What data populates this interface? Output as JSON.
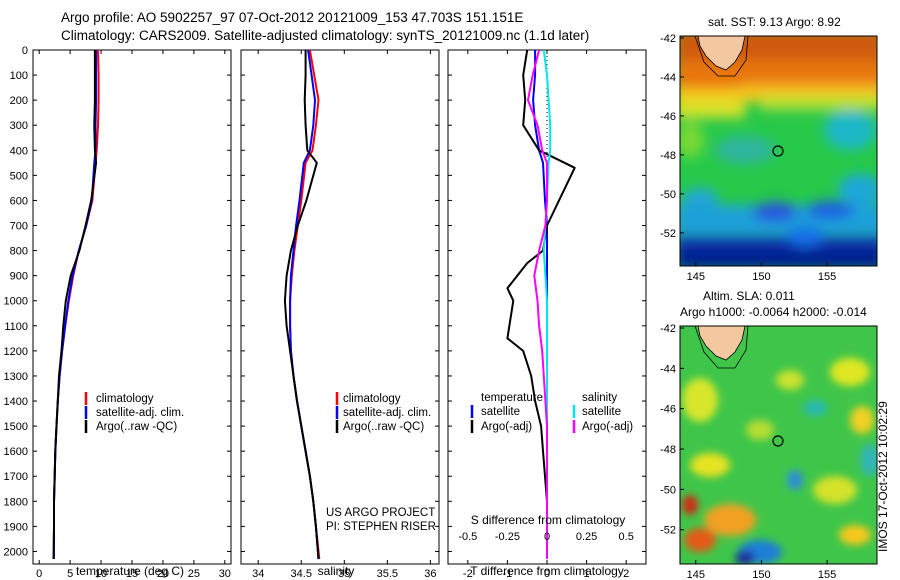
{
  "title": {
    "line1": "Argo profile: AO 5902257_97 07-Oct-2012 20121009_153 47.703S 151.151E",
    "line2": "Climatology: CARS2009. Satellite-adjusted climatology: synTS_20121009.nc (1.1d later)"
  },
  "colors": {
    "climatology": "#ff0000",
    "satellite": "#0000ff",
    "argo": "#000000",
    "salinity_satellite": "#00e5ee",
    "salinity_argo": "#ff00ff"
  },
  "chart_data": [
    {
      "type": "line",
      "panel": "temperature",
      "xlabel": "temperature (deg C)",
      "xlim": [
        -1,
        31
      ],
      "xticks": [
        0,
        5,
        10,
        15,
        20,
        25,
        30
      ],
      "ylim": [
        2050,
        0
      ],
      "yticks": [
        0,
        100,
        200,
        300,
        400,
        500,
        600,
        700,
        800,
        900,
        1000,
        1100,
        1200,
        1300,
        1400,
        1500,
        1600,
        1700,
        1800,
        1900,
        2000
      ],
      "legend": [
        "climatology",
        "satellite-adj. clim.",
        "Argo(..raw -QC)"
      ],
      "series": [
        {
          "name": "climatology",
          "color": "red",
          "x": [
            9.5,
            9.6,
            9.6,
            9.5,
            9.3,
            9.1,
            8.6,
            7.6,
            6.4,
            5.5,
            4.8,
            4.2,
            3.7,
            3.3,
            3.0,
            2.8,
            2.6,
            2.5,
            2.4,
            2.4,
            2.35
          ],
          "y": [
            0,
            100,
            200,
            300,
            400,
            450,
            600,
            700,
            800,
            900,
            1000,
            1100,
            1200,
            1300,
            1400,
            1500,
            1600,
            1700,
            1800,
            1900,
            2030
          ]
        },
        {
          "name": "satellite-adj. clim.",
          "color": "blue",
          "x": [
            9.2,
            9.2,
            9.2,
            9.1,
            9.1,
            8.9,
            8.5,
            7.6,
            6.4,
            5.4,
            4.7,
            4.2,
            3.7,
            3.3,
            3.0,
            2.8,
            2.6,
            2.5,
            2.4,
            2.4,
            2.35
          ],
          "y": [
            0,
            100,
            200,
            300,
            400,
            450,
            600,
            700,
            800,
            900,
            1000,
            1100,
            1200,
            1300,
            1400,
            1500,
            1600,
            1700,
            1800,
            1900,
            2030
          ]
        },
        {
          "name": "Argo(..raw -QC)",
          "color": "black",
          "x": [
            9.0,
            9.0,
            9.0,
            8.9,
            9.0,
            9.2,
            8.4,
            7.5,
            6.5,
            5.1,
            4.3,
            3.9,
            3.6,
            3.2,
            3.0,
            2.8,
            2.6,
            2.5,
            2.4,
            2.4,
            2.35
          ],
          "y": [
            0,
            100,
            200,
            300,
            400,
            450,
            600,
            700,
            800,
            900,
            1000,
            1100,
            1200,
            1300,
            1400,
            1500,
            1600,
            1700,
            1800,
            1900,
            2030
          ]
        }
      ]
    },
    {
      "type": "line",
      "panel": "salinity",
      "xlabel": "salinity",
      "xlim": [
        33.8,
        36.1
      ],
      "xticks": [
        34,
        34.5,
        35,
        35.5,
        36
      ],
      "xticklabels": [
        "34",
        "34.5",
        "35",
        "35.5",
        "36"
      ],
      "ylim": [
        2050,
        0
      ],
      "legend": [
        "climatology",
        "satellite-adj. clim.",
        "Argo(..raw -QC)"
      ],
      "annotation": [
        "US ARGO PROJECT",
        "PI: STEPHEN RISER"
      ],
      "series": [
        {
          "name": "climatology",
          "color": "red",
          "x": [
            34.6,
            34.65,
            34.7,
            34.67,
            34.63,
            34.55,
            34.5,
            34.46,
            34.42,
            34.39,
            34.37,
            34.37,
            34.38,
            34.41,
            34.45,
            34.5,
            34.55,
            34.6,
            34.64,
            34.67,
            34.71
          ],
          "y": [
            0,
            100,
            200,
            300,
            400,
            450,
            600,
            700,
            800,
            900,
            1000,
            1100,
            1200,
            1300,
            1400,
            1500,
            1600,
            1700,
            1800,
            1900,
            2030
          ]
        },
        {
          "name": "satellite-adj. clim.",
          "color": "blue",
          "x": [
            34.58,
            34.62,
            34.66,
            34.64,
            34.6,
            34.53,
            34.48,
            34.44,
            34.41,
            34.38,
            34.37,
            34.37,
            34.38,
            34.41,
            34.45,
            34.5,
            34.55,
            34.6,
            34.64,
            34.67,
            34.7
          ],
          "y": [
            0,
            100,
            200,
            300,
            400,
            450,
            600,
            700,
            800,
            900,
            1000,
            1100,
            1200,
            1300,
            1400,
            1500,
            1600,
            1700,
            1800,
            1900,
            2030
          ]
        },
        {
          "name": "Argo(..raw -QC)",
          "color": "black",
          "x": [
            34.55,
            34.55,
            34.54,
            34.55,
            34.57,
            34.68,
            34.56,
            34.46,
            34.38,
            34.33,
            34.31,
            34.33,
            34.37,
            34.41,
            34.45,
            34.5,
            34.55,
            34.6,
            34.64,
            34.67,
            34.7
          ],
          "y": [
            0,
            100,
            200,
            300,
            400,
            450,
            600,
            700,
            800,
            900,
            1000,
            1100,
            1200,
            1300,
            1400,
            1500,
            1600,
            1700,
            1800,
            1900,
            2030
          ]
        }
      ]
    },
    {
      "type": "line",
      "panel": "differences",
      "xlabel": "T difference from climatology",
      "xlabel2": "S difference from climatology",
      "xlim": [
        -2.5,
        2.5
      ],
      "xticks": [
        -2,
        -1,
        0,
        1,
        2
      ],
      "xticks2": [
        -0.5,
        -0.25,
        0,
        0.25,
        0.5
      ],
      "xticklabels2": [
        "-0.5",
        "-0.25",
        "0",
        "0.25",
        "0.5"
      ],
      "ylim": [
        2050,
        0
      ],
      "legend_temperature": {
        "title": "temperature",
        "items": [
          "satellite",
          "Argo(-adj)"
        ]
      },
      "legend_salinity": {
        "title": "salinity",
        "items": [
          "satellite",
          "Argo(-adj)"
        ]
      },
      "series": [
        {
          "name": "temperature satellite",
          "color": "blue",
          "x": [
            -0.3,
            -0.3,
            -0.35,
            -0.3,
            -0.2,
            -0.1,
            -0.05,
            0.0,
            0.0,
            0.0,
            0.0,
            0.0,
            0.0,
            0.0,
            0.0,
            0.0,
            0.0,
            0.0,
            0.0,
            0.0,
            0.0
          ],
          "y": [
            0,
            100,
            200,
            300,
            400,
            450,
            600,
            700,
            800,
            900,
            1000,
            1100,
            1200,
            1300,
            1400,
            1500,
            1600,
            1700,
            1800,
            1900,
            2030
          ]
        },
        {
          "name": "temperature Argo(-adj)",
          "color": "black",
          "x": [
            -0.5,
            -0.6,
            -0.55,
            -0.6,
            -0.2,
            0.7,
            0.0,
            -0.1,
            -0.5,
            -1.0,
            -0.85,
            -1.0,
            -0.6,
            -0.4,
            -0.3,
            -0.15,
            -0.1,
            -0.05,
            0.0,
            0.0,
            0.0
          ],
          "y": [
            0,
            100,
            200,
            300,
            400,
            470,
            700,
            800,
            850,
            950,
            1000,
            1150,
            1200,
            1300,
            1400,
            1500,
            1600,
            1700,
            1800,
            1900,
            2030
          ]
        },
        {
          "name": "salinity satellite",
          "color": "cyan",
          "x": [
            -0.02,
            0.0,
            0.01,
            0.02,
            0.02,
            0.01,
            0.0,
            -0.01,
            -0.02,
            -0.01,
            0.0,
            0.0,
            0.0,
            0.0,
            0.0,
            0.0,
            0.0,
            0.0,
            0.0,
            0.0,
            0.0
          ],
          "y": [
            0,
            100,
            200,
            300,
            400,
            450,
            600,
            700,
            800,
            900,
            1000,
            1100,
            1200,
            1300,
            1400,
            1500,
            1600,
            1700,
            1800,
            1900,
            2030
          ]
        },
        {
          "name": "salinity Argo(-adj)",
          "color": "magenta",
          "x": [
            -0.05,
            -0.09,
            -0.12,
            -0.06,
            -0.03,
            0.0,
            0.0,
            -0.01,
            -0.05,
            -0.08,
            -0.06,
            -0.05,
            -0.03,
            -0.02,
            -0.01,
            0.0,
            0.0,
            0.0,
            0.0,
            0.0,
            0.0
          ],
          "y": [
            0,
            100,
            200,
            300,
            400,
            450,
            600,
            700,
            800,
            900,
            1000,
            1100,
            1200,
            1300,
            1400,
            1500,
            1600,
            1700,
            1800,
            1900,
            2030
          ]
        }
      ]
    },
    {
      "type": "heatmap",
      "panel": "sst_map",
      "title": "sat. SST: 9.13 Argo: 8.92",
      "xticks": [
        145,
        150,
        155
      ],
      "yticks": [
        -42,
        -44,
        -46,
        -48,
        -50,
        -52
      ],
      "xlim": [
        143.8,
        158.8
      ],
      "ylim": [
        -53.7,
        -41.9
      ],
      "marker": {
        "lon": 151.151,
        "lat": -47.703
      }
    },
    {
      "type": "heatmap",
      "panel": "sla_map",
      "title": "Altim. SLA: 0.011",
      "subtitle": "Argo h1000: -0.0064 h2000: -0.014",
      "xticks": [
        145,
        150,
        155
      ],
      "yticks": [
        -42,
        -44,
        -46,
        -48,
        -50,
        -52
      ],
      "xlim": [
        143.8,
        158.8
      ],
      "ylim": [
        -53.7,
        -41.9
      ],
      "marker": {
        "lon": 151.151,
        "lat": -47.703
      }
    }
  ],
  "stamp": "IMOS 17-Oct-2012 10:02:29"
}
